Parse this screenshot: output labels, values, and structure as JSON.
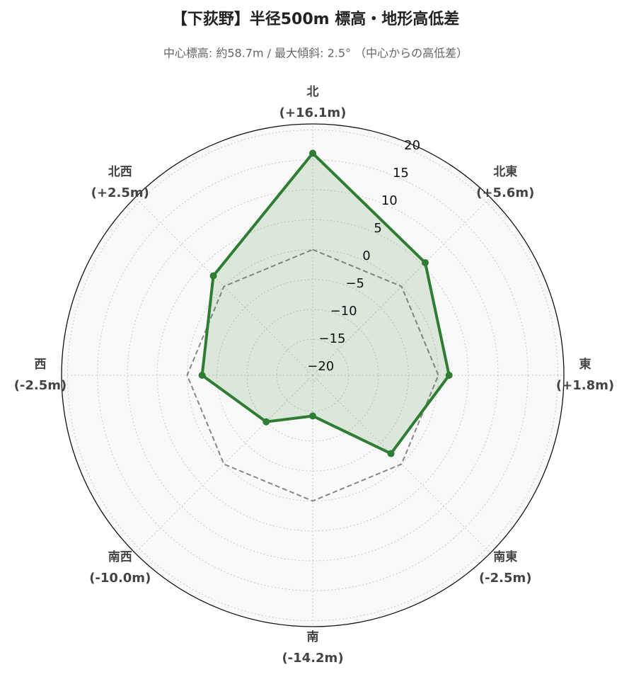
{
  "chart_data": {
    "type": "radar",
    "title": "【下荻野】半径500m 標高・地形高低差",
    "subtitle": "中心標高: 約58.7m / 最大傾斜: 2.5° （中心からの高低差）",
    "categories": [
      "北",
      "北東",
      "東",
      "南東",
      "南",
      "南西",
      "西",
      "北西"
    ],
    "values": [
      16.1,
      5.6,
      1.8,
      -2.5,
      -14.2,
      -10.0,
      -2.5,
      2.5
    ],
    "value_labels": [
      "(+16.1m)",
      "(+5.6m)",
      "(+1.8m)",
      "(-2.5m)",
      "(-14.2m)",
      "(-10.0m)",
      "(-2.5m)",
      "(+2.5m)"
    ],
    "color": "#2e7d32",
    "reference_value": 0,
    "reference_color": "#888888",
    "ylim": [
      -21,
      21
    ],
    "yticks": [
      {
        "value": -20,
        "label": "−20"
      },
      {
        "value": -15,
        "label": "−15"
      },
      {
        "value": -10,
        "label": "−10"
      },
      {
        "value": -5,
        "label": "−5"
      },
      0,
      5,
      10,
      15,
      20
    ],
    "grid": true
  }
}
